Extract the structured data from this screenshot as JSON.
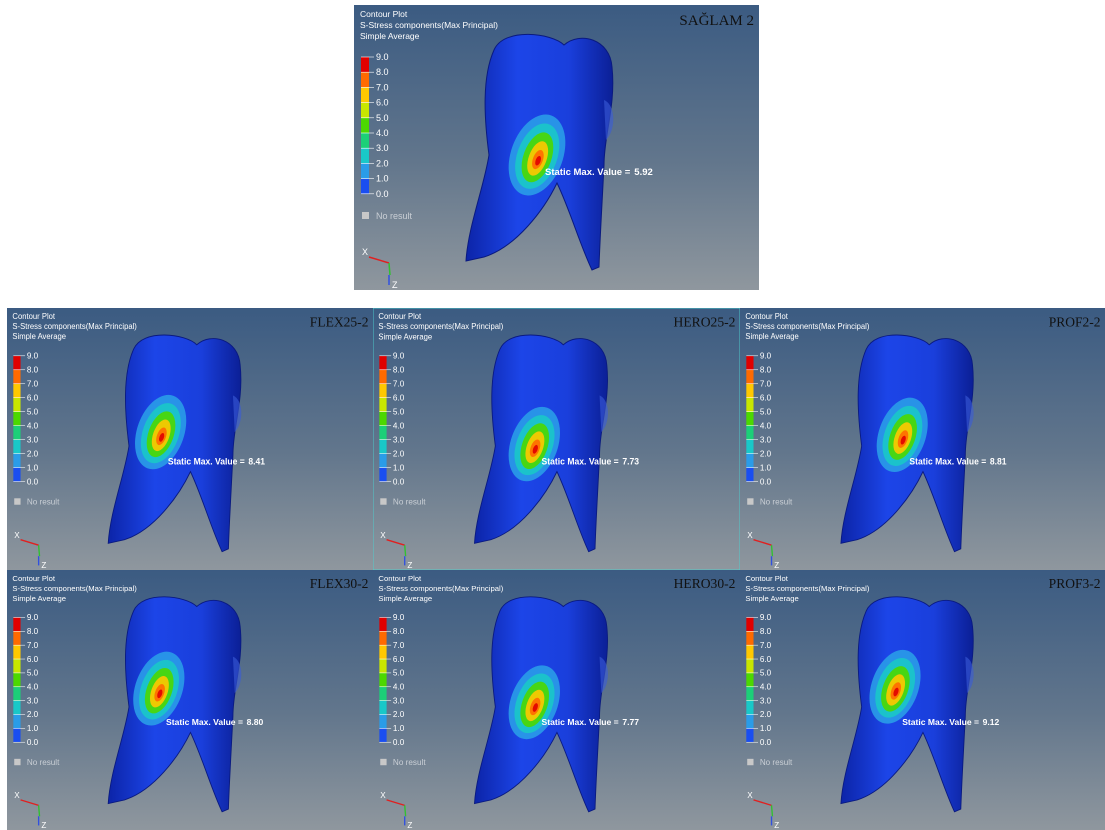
{
  "header": {
    "title": "Contour Plot",
    "subtitle": "S-Stress components(Max Principal)",
    "method": "Simple Average"
  },
  "legend": {
    "levels": [
      "9.0",
      "8.0",
      "7.0",
      "6.0",
      "5.0",
      "4.0",
      "3.0",
      "2.0",
      "1.0",
      "0.0"
    ],
    "no_result": "No result"
  },
  "triad": {
    "x": "X",
    "z": "Z"
  },
  "max_label": "Static Max. Value =",
  "panels": [
    {
      "label": "SAĞLAM 2",
      "max_value": "5.92"
    },
    {
      "label": "FLEX25-2",
      "max_value": "8.41"
    },
    {
      "label": "HERO25-2",
      "max_value": "7.73"
    },
    {
      "label": "PROF2-2",
      "max_value": "8.81"
    },
    {
      "label": "FLEX30-2",
      "max_value": "8.80"
    },
    {
      "label": "HERO30-2",
      "max_value": "7.77"
    },
    {
      "label": "PROF3-2",
      "max_value": "9.12"
    }
  ]
}
